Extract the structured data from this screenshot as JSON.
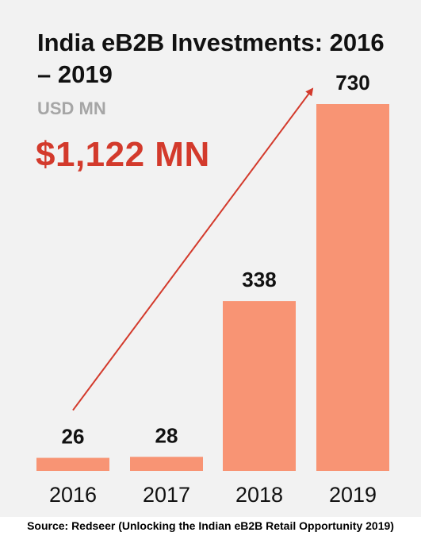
{
  "title": "India eB2B Investments: 2016 – 2019",
  "unit": "USD MN",
  "total": "$1,122 MN",
  "source": "Source: Redseer (Unlocking the Indian eB2B Retail Opportunity 2019)",
  "colors": {
    "bar": "#f89474",
    "arrow": "#d33a2c",
    "background": "#f2f2f2",
    "total": "#d33a2c"
  },
  "chart_data": {
    "type": "bar",
    "title": "India eB2B Investments: 2016 – 2019",
    "subtitle": "USD MN",
    "categories": [
      "2016",
      "2017",
      "2018",
      "2019"
    ],
    "values": [
      26,
      28,
      338,
      730
    ],
    "data_labels": [
      "26",
      "28",
      "338",
      "730"
    ],
    "annotation": "$1,122 MN",
    "trend_arrow": true,
    "ylim": [
      0,
      730
    ],
    "grid": false,
    "legend": "none"
  }
}
